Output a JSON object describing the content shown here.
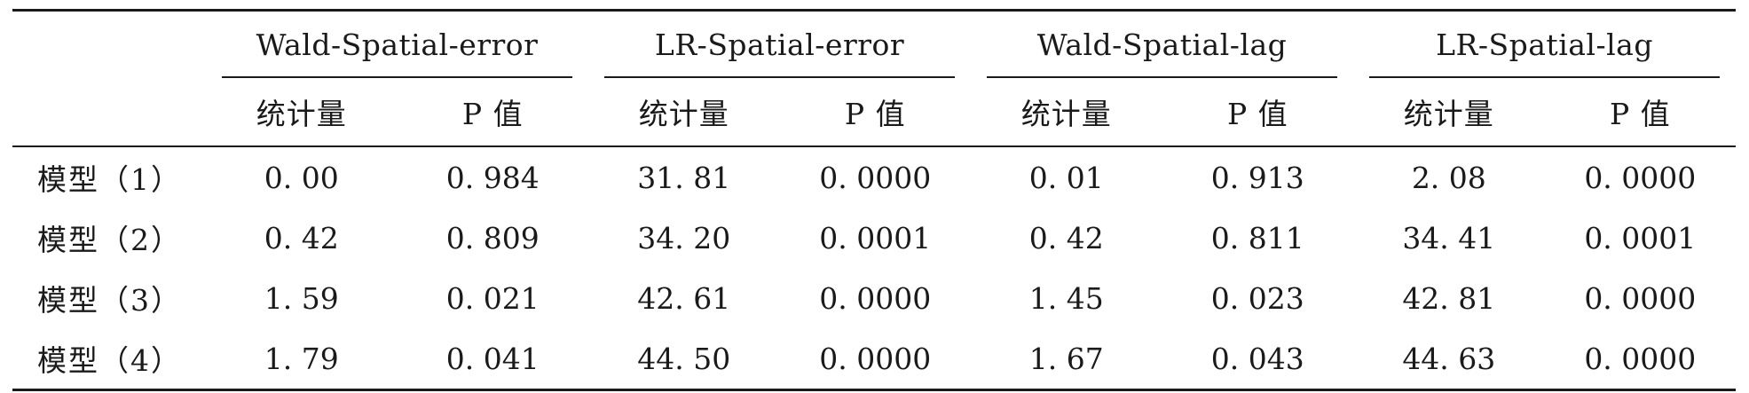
{
  "table": {
    "corner": "",
    "groups": [
      "Wald-Spatial-error",
      "LR-Spatial-error",
      "Wald-Spatial-lag",
      "LR-Spatial-lag"
    ],
    "subheaders": [
      "统计量",
      "P 值",
      "统计量",
      "P 值",
      "统计量",
      "P 值",
      "统计量",
      "P 值"
    ],
    "rows": [
      {
        "label": "模型（1）",
        "cells": [
          "0. 00",
          "0. 984",
          "31. 81",
          "0. 0000",
          "0. 01",
          "0. 913",
          "2. 08",
          "0. 0000"
        ]
      },
      {
        "label": "模型（2）",
        "cells": [
          "0. 42",
          "0. 809",
          "34. 20",
          "0. 0001",
          "0. 42",
          "0. 811",
          "34. 41",
          "0. 0001"
        ]
      },
      {
        "label": "模型（3）",
        "cells": [
          "1. 59",
          "0. 021",
          "42. 61",
          "0. 0000",
          "1. 45",
          "0. 023",
          "42. 81",
          "0. 0000"
        ]
      },
      {
        "label": "模型（4）",
        "cells": [
          "1. 79",
          "0. 041",
          "44. 50",
          "0. 0000",
          "1. 67",
          "0. 043",
          "44. 63",
          "0. 0000"
        ]
      }
    ]
  }
}
